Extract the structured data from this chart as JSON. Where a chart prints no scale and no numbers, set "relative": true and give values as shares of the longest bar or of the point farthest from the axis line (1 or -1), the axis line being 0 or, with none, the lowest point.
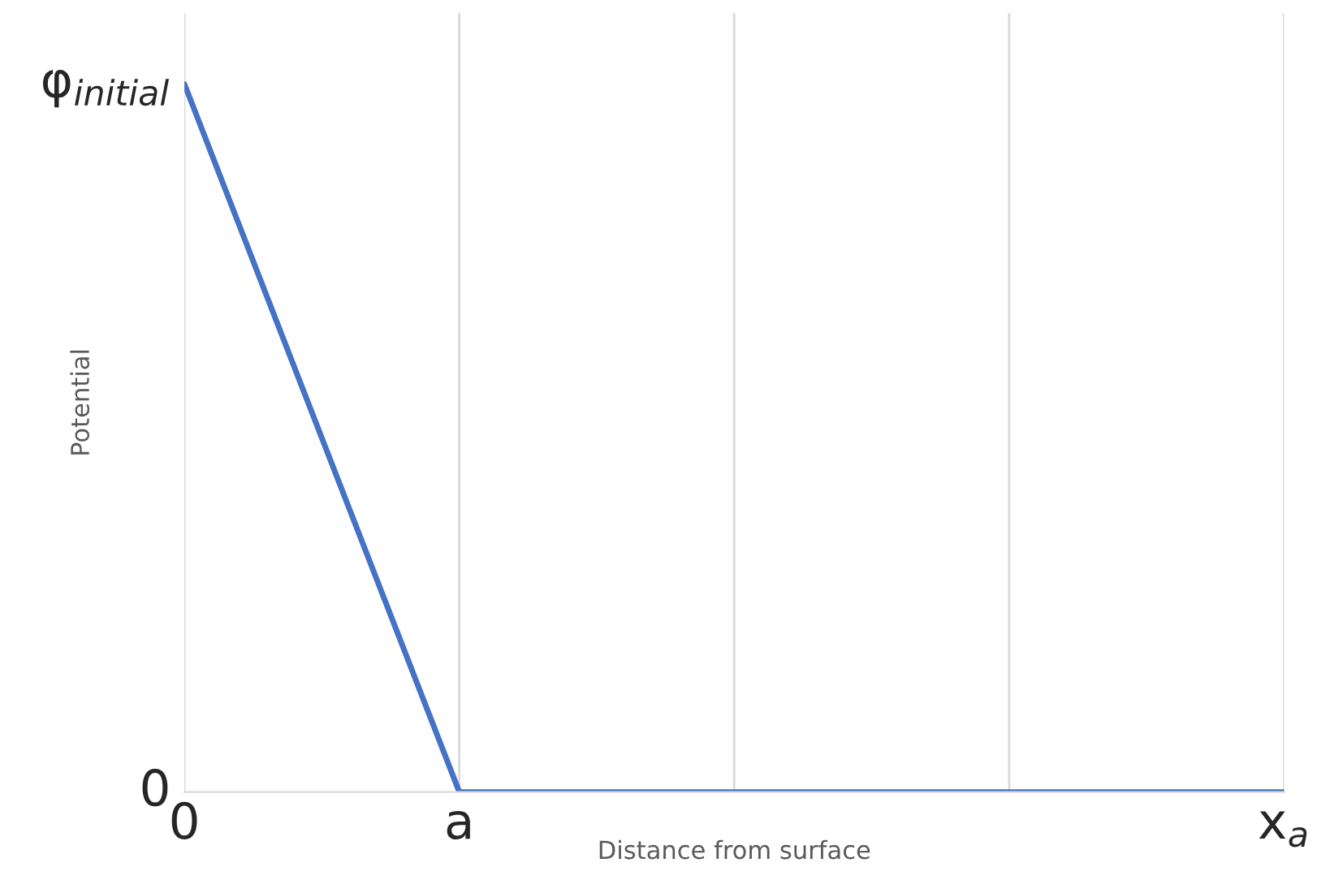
{
  "chart_data": {
    "type": "line",
    "xlabel": "Distance from surface",
    "ylabel": "Potential",
    "relative": true,
    "categories": [
      "0",
      "a",
      null,
      null,
      "x$_{a}$"
    ],
    "series": [
      {
        "color": "#4472c4",
        "values": [
          1,
          0,
          0,
          0,
          0
        ]
      }
    ],
    "annotations": [
      {
        "text": "φ$_{initial}$",
        "x": "0",
        "y": 1
      },
      "0"
    ],
    "grid": "x",
    "legend": false,
    "marker": "none",
    "line_style": "solid"
  }
}
